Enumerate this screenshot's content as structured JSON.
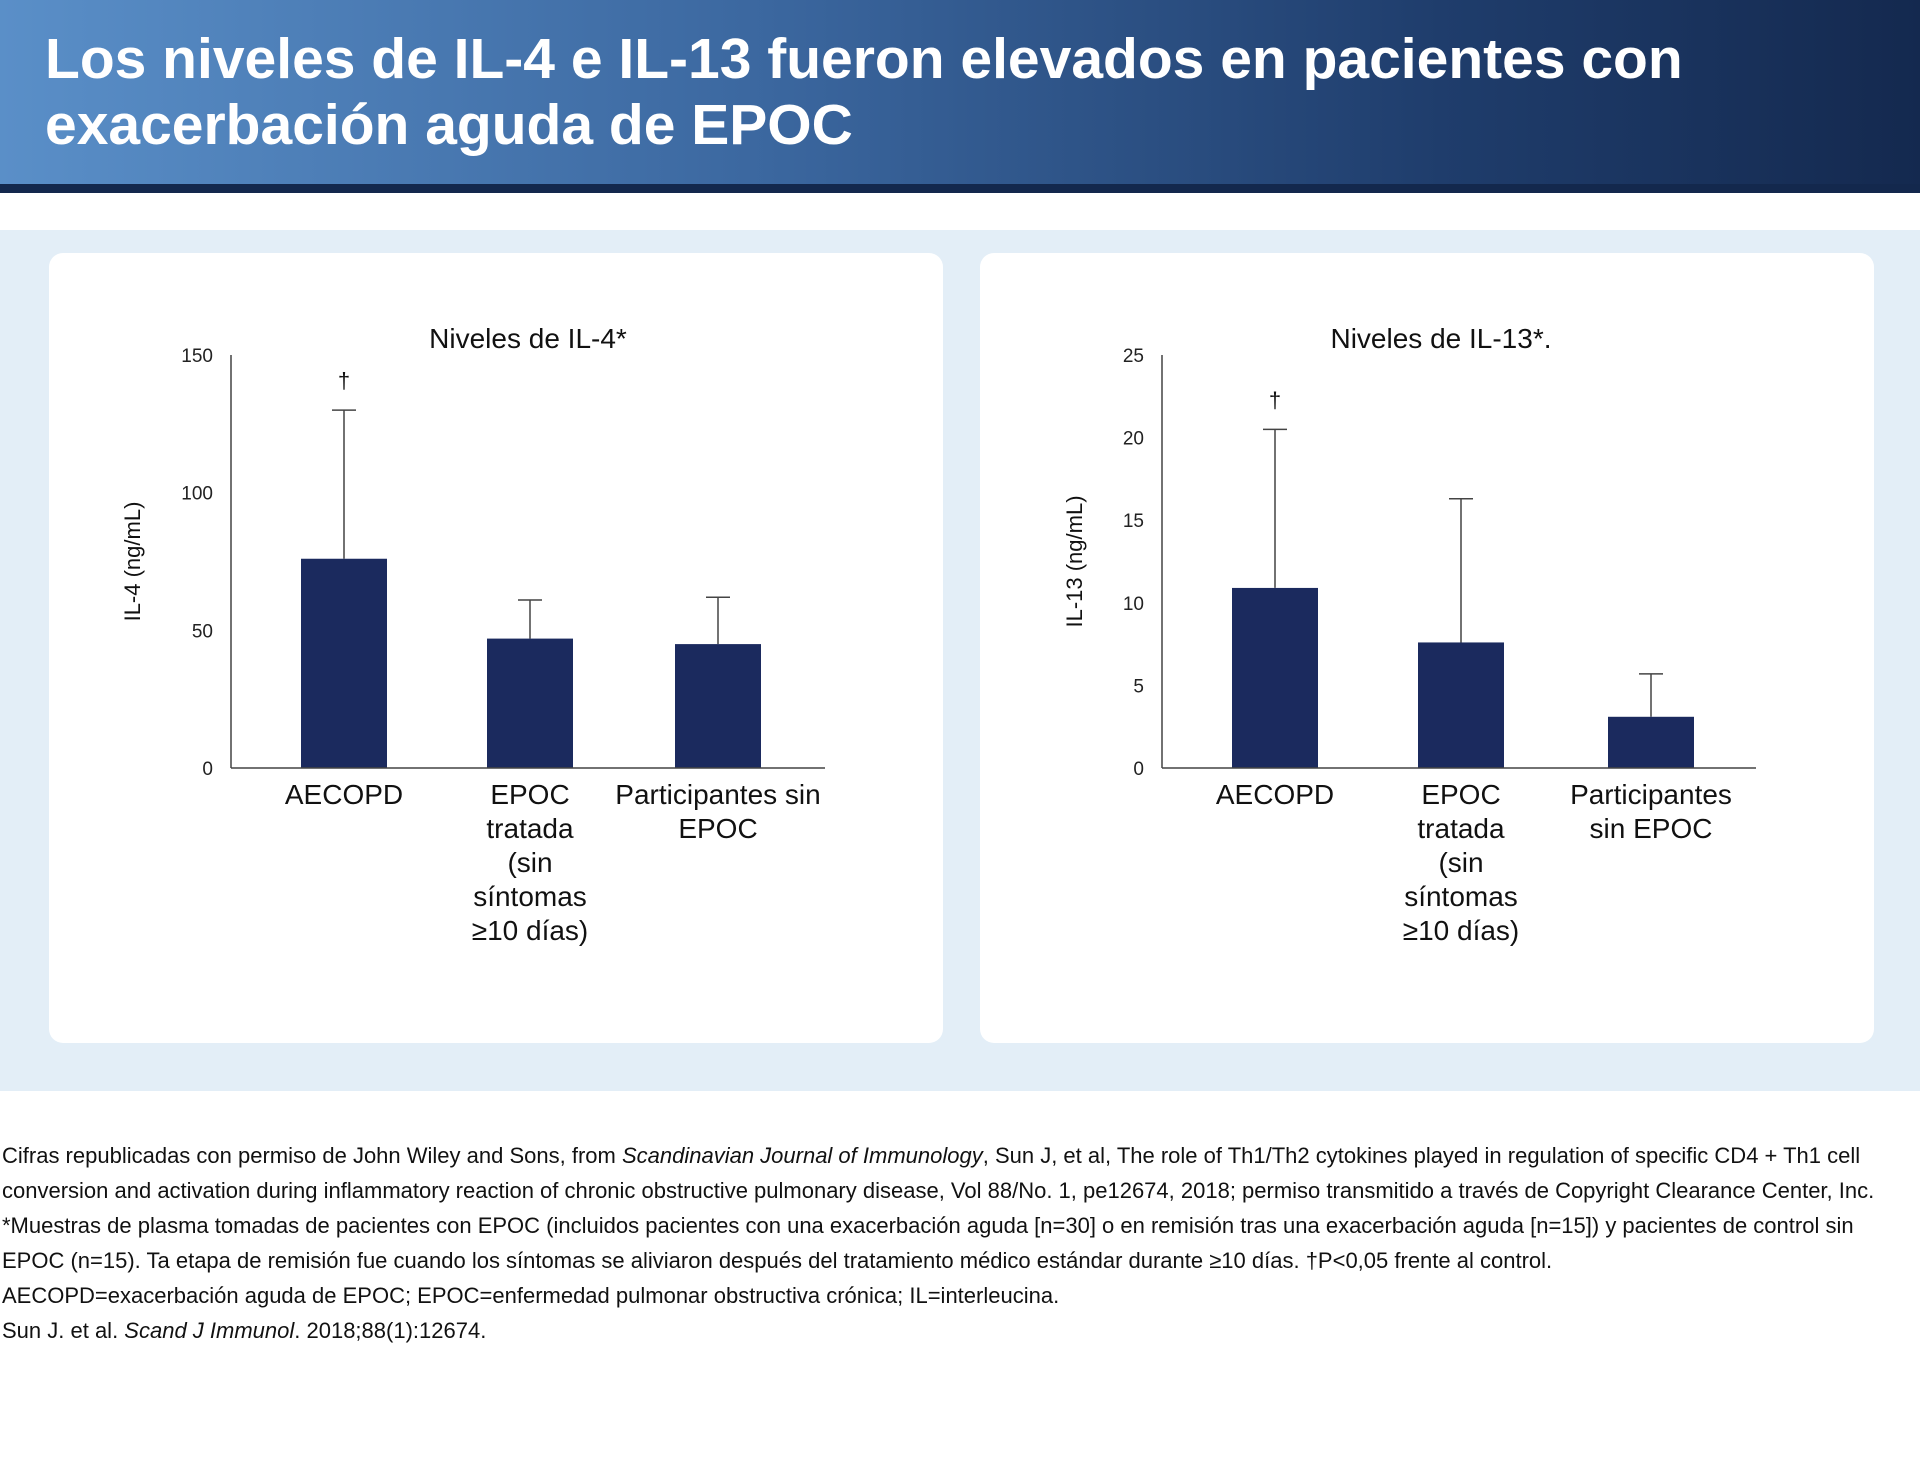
{
  "header": {
    "title": "Los niveles de IL-4 e IL-13 fueron elevados en pacientes con exacerbación aguda de EPOC"
  },
  "colors": {
    "bar": "#1b2a5e",
    "header_dark": "#13284d",
    "band": "#e3eef7"
  },
  "chart_data": [
    {
      "type": "bar",
      "title": "Niveles de IL-4*",
      "ylabel": "IL-4 (ng/mL)",
      "xlabel": "",
      "ylim": [
        0,
        150
      ],
      "yticks": [
        "0",
        "50",
        "100",
        "150"
      ],
      "categories": [
        "AECOPD",
        "EPOC\ntratada\n(sin\nsíntomas\n≥10 días)",
        "Participantes sin\nEPOC"
      ],
      "values": [
        76,
        47,
        45
      ],
      "error_upper": [
        130,
        61,
        62
      ],
      "annotations": [
        "†",
        "",
        ""
      ],
      "grid": false
    },
    {
      "type": "bar",
      "title": "Niveles de IL-13*.",
      "ylabel": "IL-13 (ng/mL)",
      "xlabel": "",
      "ylim": [
        0,
        25
      ],
      "yticks": [
        "0",
        "5",
        "10",
        "15",
        "20",
        "25"
      ],
      "categories": [
        "AECOPD",
        "EPOC\ntratada\n(sin\nsíntomas\n≥10 días)",
        "Participantes\nsin EPOC"
      ],
      "values": [
        10.9,
        7.6,
        3.1
      ],
      "error_upper": [
        20.5,
        16.3,
        5.7
      ],
      "annotations": [
        "†",
        "",
        ""
      ],
      "grid": false
    }
  ],
  "footnotes": {
    "p1_a": "Cifras republicadas con permiso de John Wiley and Sons, from ",
    "p1_b": "Scandinavian Journal of Immunology",
    "p1_c": ", Sun J, et al, The role of Th1/Th2 cytokines played in regulation of specific CD4 + Th1 cell conversion and activation during inflammatory reaction of chronic obstructive pulmonary disease, Vol 88/No. 1, pe12674, 2018; permiso transmitido a través de Copyright Clearance Center, Inc.",
    "p2": "*Muestras de plasma tomadas de pacientes con EPOC (incluidos pacientes con una exacerbación aguda [n=30] o en remisión tras una exacerbación aguda [n=15]) y pacientes de control sin EPOC (n=15). Ta etapa de remisión fue cuando los síntomas se aliviaron después del tratamiento médico estándar durante ≥10 días. †P<0,05 frente al control.",
    "p3": "AECOPD=exacerbación aguda de EPOC; EPOC=enfermedad pulmonar obstructiva crónica; IL=interleucina.",
    "p4_a": "Sun J. et al. ",
    "p4_b": "Scand J Immunol",
    "p4_c": ". 2018;88(1):12674."
  }
}
